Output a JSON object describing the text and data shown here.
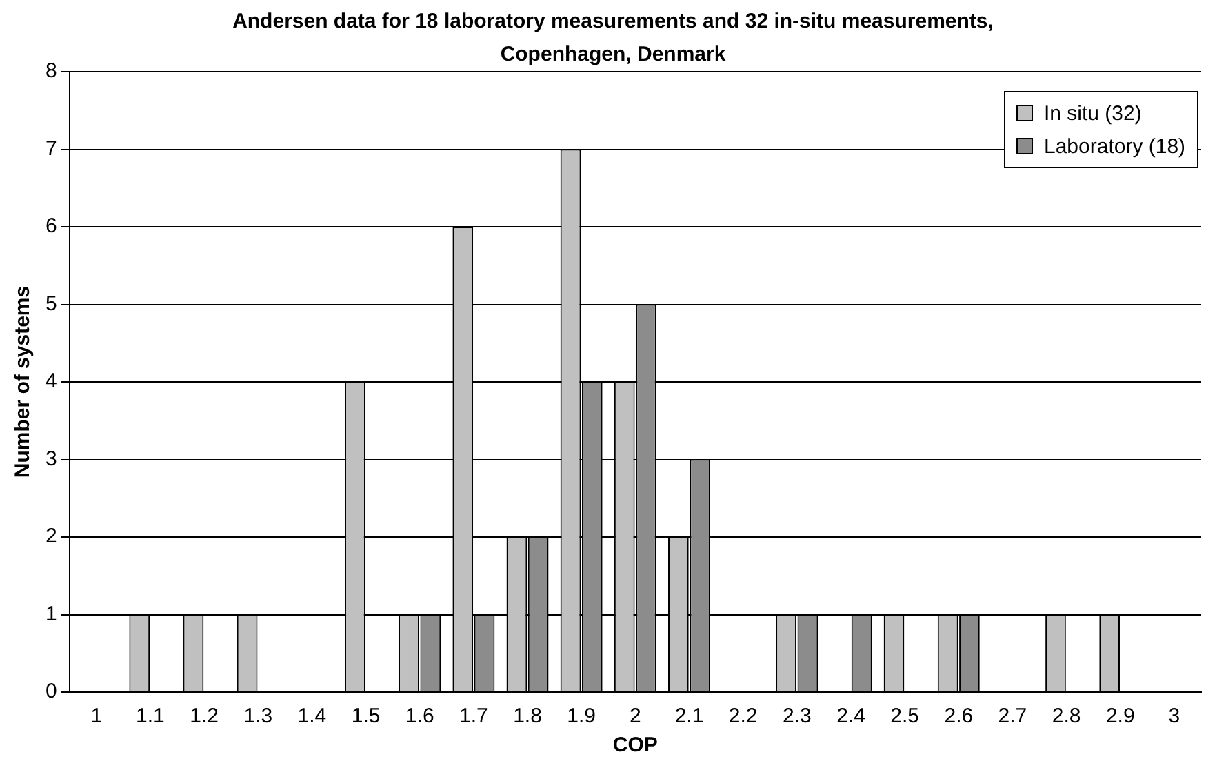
{
  "chart_data": {
    "type": "bar",
    "title": "Andersen data for 18 laboratory measurements and 32 in-situ measurements, Copenhagen, Denmark",
    "xlabel": "COP",
    "ylabel": "Number of systems",
    "categories": [
      "1",
      "1.1",
      "1.2",
      "1.3",
      "1.4",
      "1.5",
      "1.6",
      "1.7",
      "1.8",
      "1.9",
      "2",
      "2.1",
      "2.2",
      "2.3",
      "2.4",
      "2.5",
      "2.6",
      "2.7",
      "2.8",
      "2.9",
      "3"
    ],
    "series": [
      {
        "name": "In situ (32)",
        "color": "#c0c0c0",
        "values": [
          0,
          1,
          1,
          1,
          0,
          4,
          1,
          6,
          2,
          7,
          4,
          2,
          0,
          1,
          0,
          1,
          1,
          0,
          1,
          1,
          0
        ]
      },
      {
        "name": "Laboratory (18)",
        "color": "#8c8c8c",
        "values": [
          0,
          0,
          0,
          0,
          0,
          0,
          1,
          1,
          2,
          4,
          5,
          3,
          0,
          1,
          1,
          0,
          1,
          0,
          0,
          0,
          0
        ]
      }
    ],
    "ylim": [
      0,
      8
    ],
    "yticks": [
      0,
      1,
      2,
      3,
      4,
      5,
      6,
      7,
      8
    ],
    "grid": "y",
    "legend": "top right"
  }
}
